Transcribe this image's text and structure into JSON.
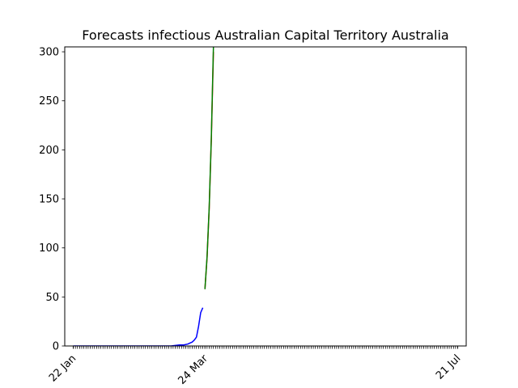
{
  "chart_data": {
    "type": "line",
    "title": "Forecasts infectious Australian Capital Territory Australia",
    "xlabel": "",
    "ylabel": "",
    "x_axis": {
      "type": "date",
      "range": [
        "2020-01-18",
        "2020-07-25"
      ],
      "tick_labels": [
        {
          "date": "2020-01-22",
          "label": "22 Jan"
        },
        {
          "date": "2020-03-24",
          "label": "24 Mar"
        },
        {
          "date": "2020-07-21",
          "label": "21 Jul"
        }
      ],
      "minor_ticks": "daily"
    },
    "ylim": [
      0,
      305
    ],
    "y_ticks": [
      0,
      50,
      100,
      150,
      200,
      250,
      300
    ],
    "grid": false,
    "series": [
      {
        "color": "#0000ff",
        "points": [
          [
            "2020-01-22",
            0
          ],
          [
            "2020-02-01",
            0
          ],
          [
            "2020-02-11",
            0
          ],
          [
            "2020-02-21",
            0
          ],
          [
            "2020-03-01",
            0
          ],
          [
            "2020-03-08",
            0
          ],
          [
            "2020-03-12",
            1
          ],
          [
            "2020-03-14",
            1
          ],
          [
            "2020-03-16",
            2
          ],
          [
            "2020-03-17",
            3
          ],
          [
            "2020-03-18",
            4
          ],
          [
            "2020-03-19",
            6
          ],
          [
            "2020-03-20",
            9
          ],
          [
            "2020-03-21",
            20
          ],
          [
            "2020-03-22",
            34
          ],
          [
            "2020-03-23",
            39
          ]
        ]
      },
      {
        "color": "#ff0000",
        "points": [
          [
            "2020-03-24",
            58
          ],
          [
            "2020-03-25",
            90
          ],
          [
            "2020-03-26",
            140
          ],
          [
            "2020-03-27",
            210
          ],
          [
            "2020-03-28",
            300
          ]
        ]
      },
      {
        "color": "#008000",
        "points": [
          [
            "2020-03-24",
            58
          ],
          [
            "2020-03-25",
            91
          ],
          [
            "2020-03-26",
            141
          ],
          [
            "2020-03-27",
            212
          ],
          [
            "2020-03-28",
            305
          ]
        ]
      }
    ]
  }
}
